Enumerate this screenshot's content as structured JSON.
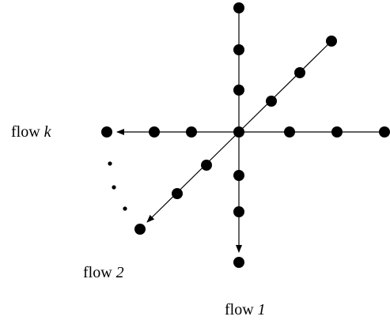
{
  "labels": {
    "flow_k": {
      "word": "flow",
      "index": "k"
    },
    "flow_2": {
      "word": "flow",
      "index": "2"
    },
    "flow_1": {
      "word": "flow",
      "index": "1"
    }
  },
  "colors": {
    "stroke": "#000000",
    "node": "#000000"
  }
}
